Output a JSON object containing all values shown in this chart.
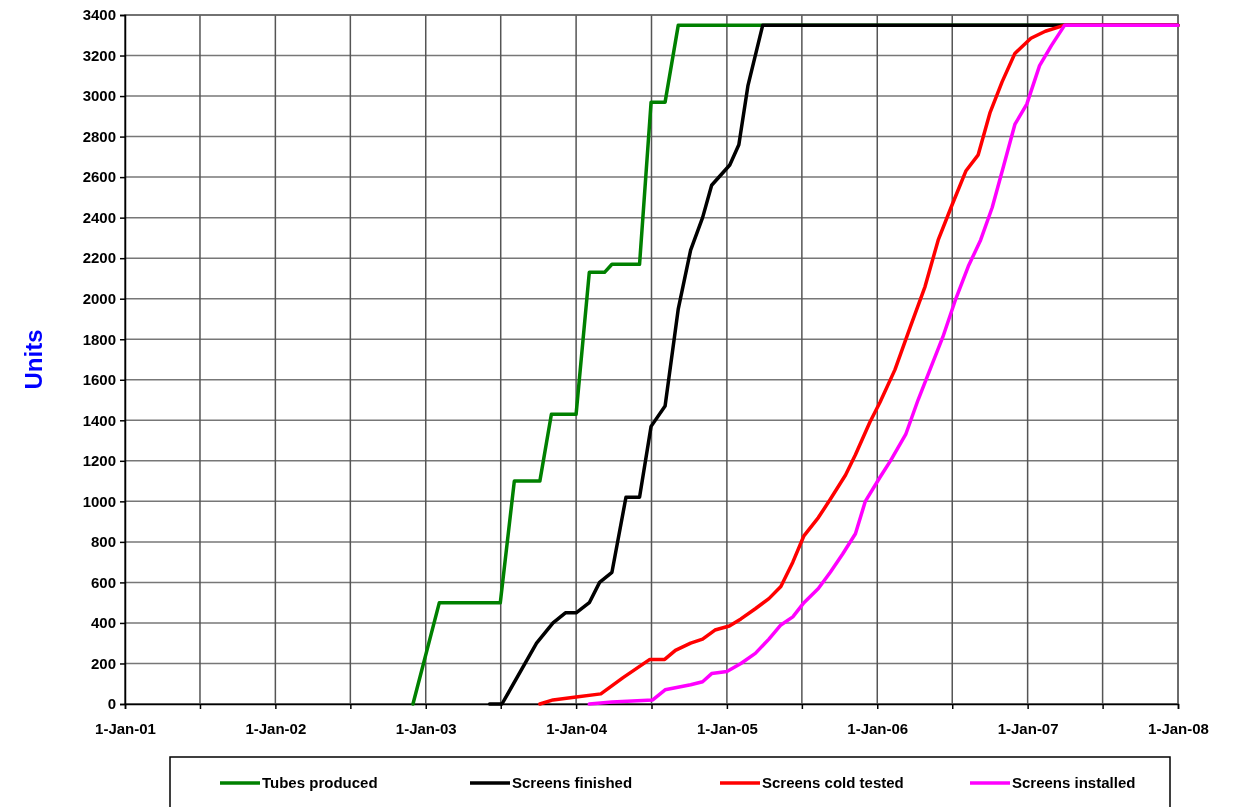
{
  "chart_data": {
    "type": "line",
    "ylabel": "Units",
    "xlim": [
      "2001-01-01",
      "2008-01-01"
    ],
    "ylim": [
      0,
      3400
    ],
    "xticks": [
      {
        "value": "2001-01-01",
        "label": "1-Jan-01"
      },
      {
        "value": "2001-07-02",
        "label": null
      },
      {
        "value": "2002-01-01",
        "label": "1-Jan-02"
      },
      {
        "value": "2002-07-02",
        "label": null
      },
      {
        "value": "2003-01-01",
        "label": "1-Jan-03"
      },
      {
        "value": "2003-07-02",
        "label": null
      },
      {
        "value": "2004-01-01",
        "label": "1-Jan-04"
      },
      {
        "value": "2004-07-02",
        "label": null
      },
      {
        "value": "2005-01-01",
        "label": "1-Jan-05"
      },
      {
        "value": "2005-07-02",
        "label": null
      },
      {
        "value": "2006-01-01",
        "label": "1-Jan-06"
      },
      {
        "value": "2006-07-02",
        "label": null
      },
      {
        "value": "2007-01-01",
        "label": "1-Jan-07"
      },
      {
        "value": "2007-07-02",
        "label": null
      },
      {
        "value": "2008-01-01",
        "label": "1-Jan-08"
      }
    ],
    "yticks": [
      0,
      200,
      400,
      600,
      800,
      1000,
      1200,
      1400,
      1600,
      1800,
      2000,
      2200,
      2400,
      2600,
      2800,
      3000,
      3200,
      3400
    ],
    "grid": true,
    "legend": "bottom",
    "marker": "none",
    "line_style": "solid",
    "series": [
      {
        "name": "Tubes produced",
        "color": "#008000",
        "x": [
          "2002-12-01",
          "2003-02-03",
          "2003-07-01",
          "2003-08-04",
          "2003-10-05",
          "2003-11-02",
          "2004-01-01",
          "2004-02-02",
          "2004-03-10",
          "2004-03-28",
          "2004-06-03",
          "2004-07-01",
          "2004-08-04",
          "2004-09-05",
          "2008-01-01"
        ],
        "values": [
          0,
          500,
          500,
          1100,
          1100,
          1430,
          1430,
          2130,
          2130,
          2170,
          2170,
          2970,
          2970,
          3350,
          3350
        ]
      },
      {
        "name": "Screens finished",
        "color": "#000000",
        "x": [
          "2003-06-05",
          "2003-07-05",
          "2003-09-27",
          "2003-11-06",
          "2003-12-06",
          "2004-01-01",
          "2004-02-02",
          "2004-02-27",
          "2004-03-28",
          "2004-05-01",
          "2004-06-03",
          "2004-07-01",
          "2004-08-04",
          "2004-09-05",
          "2004-10-05",
          "2004-11-03",
          "2004-11-25",
          "2005-01-08",
          "2005-01-30",
          "2005-02-21",
          "2005-03-29",
          "2008-01-01"
        ],
        "values": [
          0,
          0,
          300,
          400,
          450,
          450,
          500,
          600,
          650,
          1020,
          1020,
          1370,
          1470,
          1950,
          2240,
          2400,
          2560,
          2660,
          2760,
          3050,
          3350,
          3350
        ]
      },
      {
        "name": "Screens cold tested",
        "color": "#ff0000",
        "x": [
          "2003-10-05",
          "2003-11-06",
          "2004-01-01",
          "2004-03-01",
          "2004-04-24",
          "2004-06-28",
          "2004-08-03",
          "2004-08-29",
          "2004-10-05",
          "2004-11-03",
          "2004-12-03",
          "2005-01-07",
          "2005-02-04",
          "2005-03-11",
          "2005-04-13",
          "2005-05-12",
          "2005-06-10",
          "2005-07-07",
          "2005-08-11",
          "2005-09-09",
          "2005-10-16",
          "2005-11-09",
          "2005-12-14",
          "2006-01-08",
          "2006-02-13",
          "2006-03-22",
          "2006-04-27",
          "2006-05-29",
          "2006-07-01",
          "2006-08-04",
          "2006-09-03",
          "2006-10-02",
          "2006-10-31",
          "2006-12-01",
          "2007-01-09",
          "2007-02-13",
          "2007-04-01",
          "2008-01-01"
        ],
        "values": [
          0,
          20,
          35,
          50,
          130,
          220,
          220,
          265,
          300,
          320,
          365,
          385,
          420,
          470,
          520,
          580,
          700,
          830,
          920,
          1010,
          1130,
          1230,
          1390,
          1490,
          1650,
          1860,
          2060,
          2290,
          2460,
          2630,
          2710,
          2920,
          3070,
          3210,
          3285,
          3320,
          3350,
          3350
        ]
      },
      {
        "name": "Screens installed",
        "color": "#ff00ff",
        "x": [
          "2004-02-02",
          "2004-03-28",
          "2004-07-05",
          "2004-08-04",
          "2004-10-05",
          "2004-11-03",
          "2004-11-25",
          "2005-01-01",
          "2005-02-04",
          "2005-03-11",
          "2005-04-13",
          "2005-05-12",
          "2005-06-10",
          "2005-07-07",
          "2005-08-11",
          "2005-09-09",
          "2005-10-09",
          "2005-11-09",
          "2005-12-03",
          "2006-01-08",
          "2006-02-02",
          "2006-03-11",
          "2006-04-10",
          "2006-05-09",
          "2006-06-09",
          "2006-07-09",
          "2006-08-10",
          "2006-09-09",
          "2006-10-07",
          "2006-11-03",
          "2006-12-01",
          "2006-12-30",
          "2007-01-30",
          "2007-02-28",
          "2007-04-01",
          "2008-01-01"
        ],
        "values": [
          0,
          10,
          20,
          70,
          95,
          110,
          150,
          160,
          200,
          250,
          320,
          390,
          430,
          500,
          570,
          650,
          740,
          840,
          1000,
          1120,
          1200,
          1330,
          1500,
          1650,
          1810,
          1990,
          2160,
          2290,
          2450,
          2650,
          2860,
          2960,
          3150,
          3250,
          3350,
          3350
        ]
      }
    ]
  }
}
